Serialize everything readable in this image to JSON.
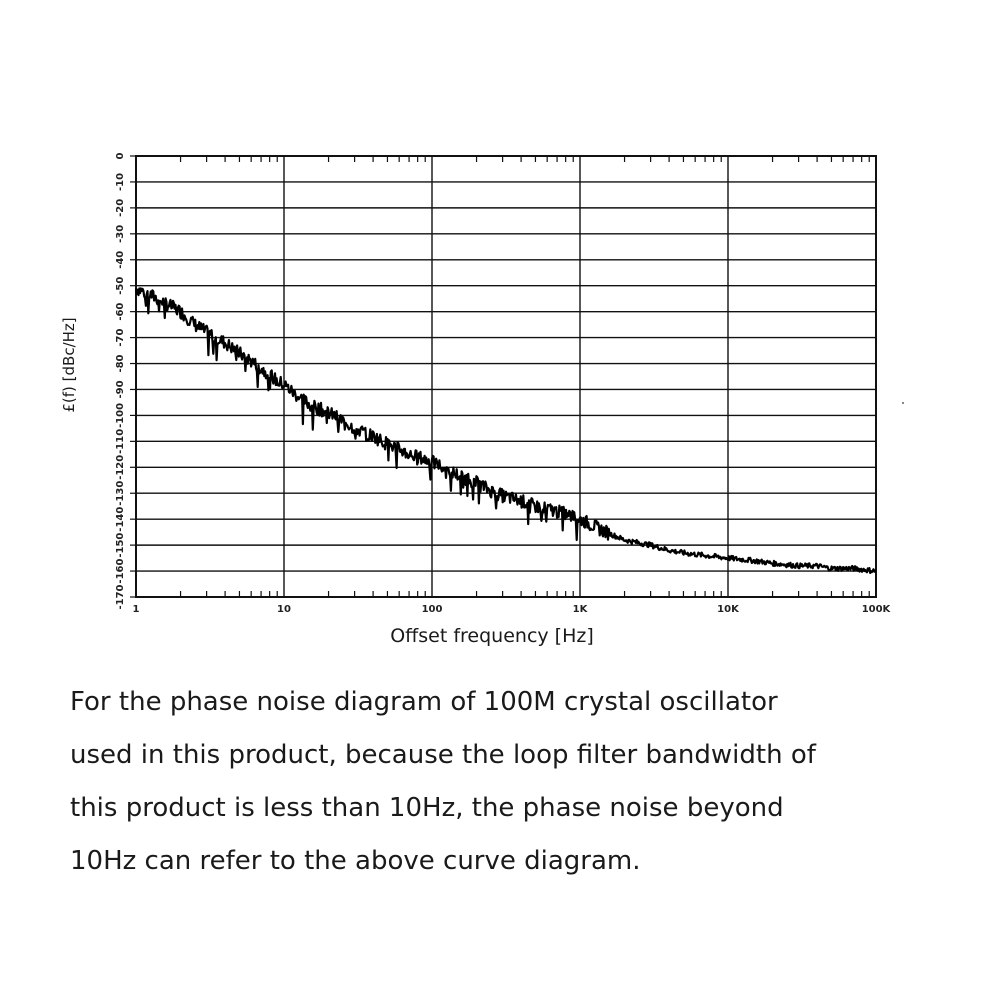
{
  "chart_data": {
    "type": "line",
    "xscale": "log",
    "xlim": [
      1,
      100000
    ],
    "ylim": [
      -170,
      0
    ],
    "grid": true,
    "xlabel": "Offset frequency [Hz]",
    "ylabel": "£(f) [dBc/Hz]",
    "x_ticks": [
      "1",
      "10",
      "100",
      "1K",
      "10K",
      "100K"
    ],
    "y_ticks": [
      "0",
      "-10",
      "-20",
      "-30",
      "-40",
      "-50",
      "-60",
      "-70",
      "-80",
      "-90",
      "-100",
      "-110",
      "-120",
      "-130",
      "-140",
      "-150",
      "-160",
      "-170"
    ],
    "series": [
      {
        "x": [
          1,
          1.2,
          1.5,
          2,
          2.5,
          3,
          4,
          5,
          6,
          7,
          8,
          9,
          10,
          12,
          15,
          20,
          25,
          30,
          40,
          50,
          60,
          70,
          80,
          100,
          120,
          150,
          200,
          250,
          300,
          400,
          500,
          600,
          700,
          800,
          1000,
          1500,
          2000,
          3000,
          4000,
          5000,
          7000,
          10000,
          15000,
          20000,
          30000,
          40000,
          50000,
          70000,
          100000
        ],
        "y": [
          -51,
          -53,
          -56,
          -60,
          -65,
          -68,
          -72,
          -76,
          -79,
          -82,
          -84,
          -87,
          -88,
          -92,
          -96,
          -99,
          -102,
          -105,
          -108,
          -111,
          -113,
          -115,
          -116,
          -118,
          -120,
          -123,
          -126,
          -129,
          -131,
          -133,
          -135,
          -136,
          -137,
          -138,
          -140,
          -145,
          -148,
          -150,
          -152,
          -153,
          -154,
          -155,
          -156,
          -157,
          -158,
          -158,
          -159,
          -159,
          -160
        ]
      }
    ]
  },
  "caption": {
    "line1": "For the phase noise diagram of 100M crystal oscillator",
    "line2": "used in this product, because the loop filter bandwidth of",
    "line3": "this product is less than 10Hz, the phase noise beyond",
    "line4": "10Hz can refer to the above curve diagram."
  }
}
